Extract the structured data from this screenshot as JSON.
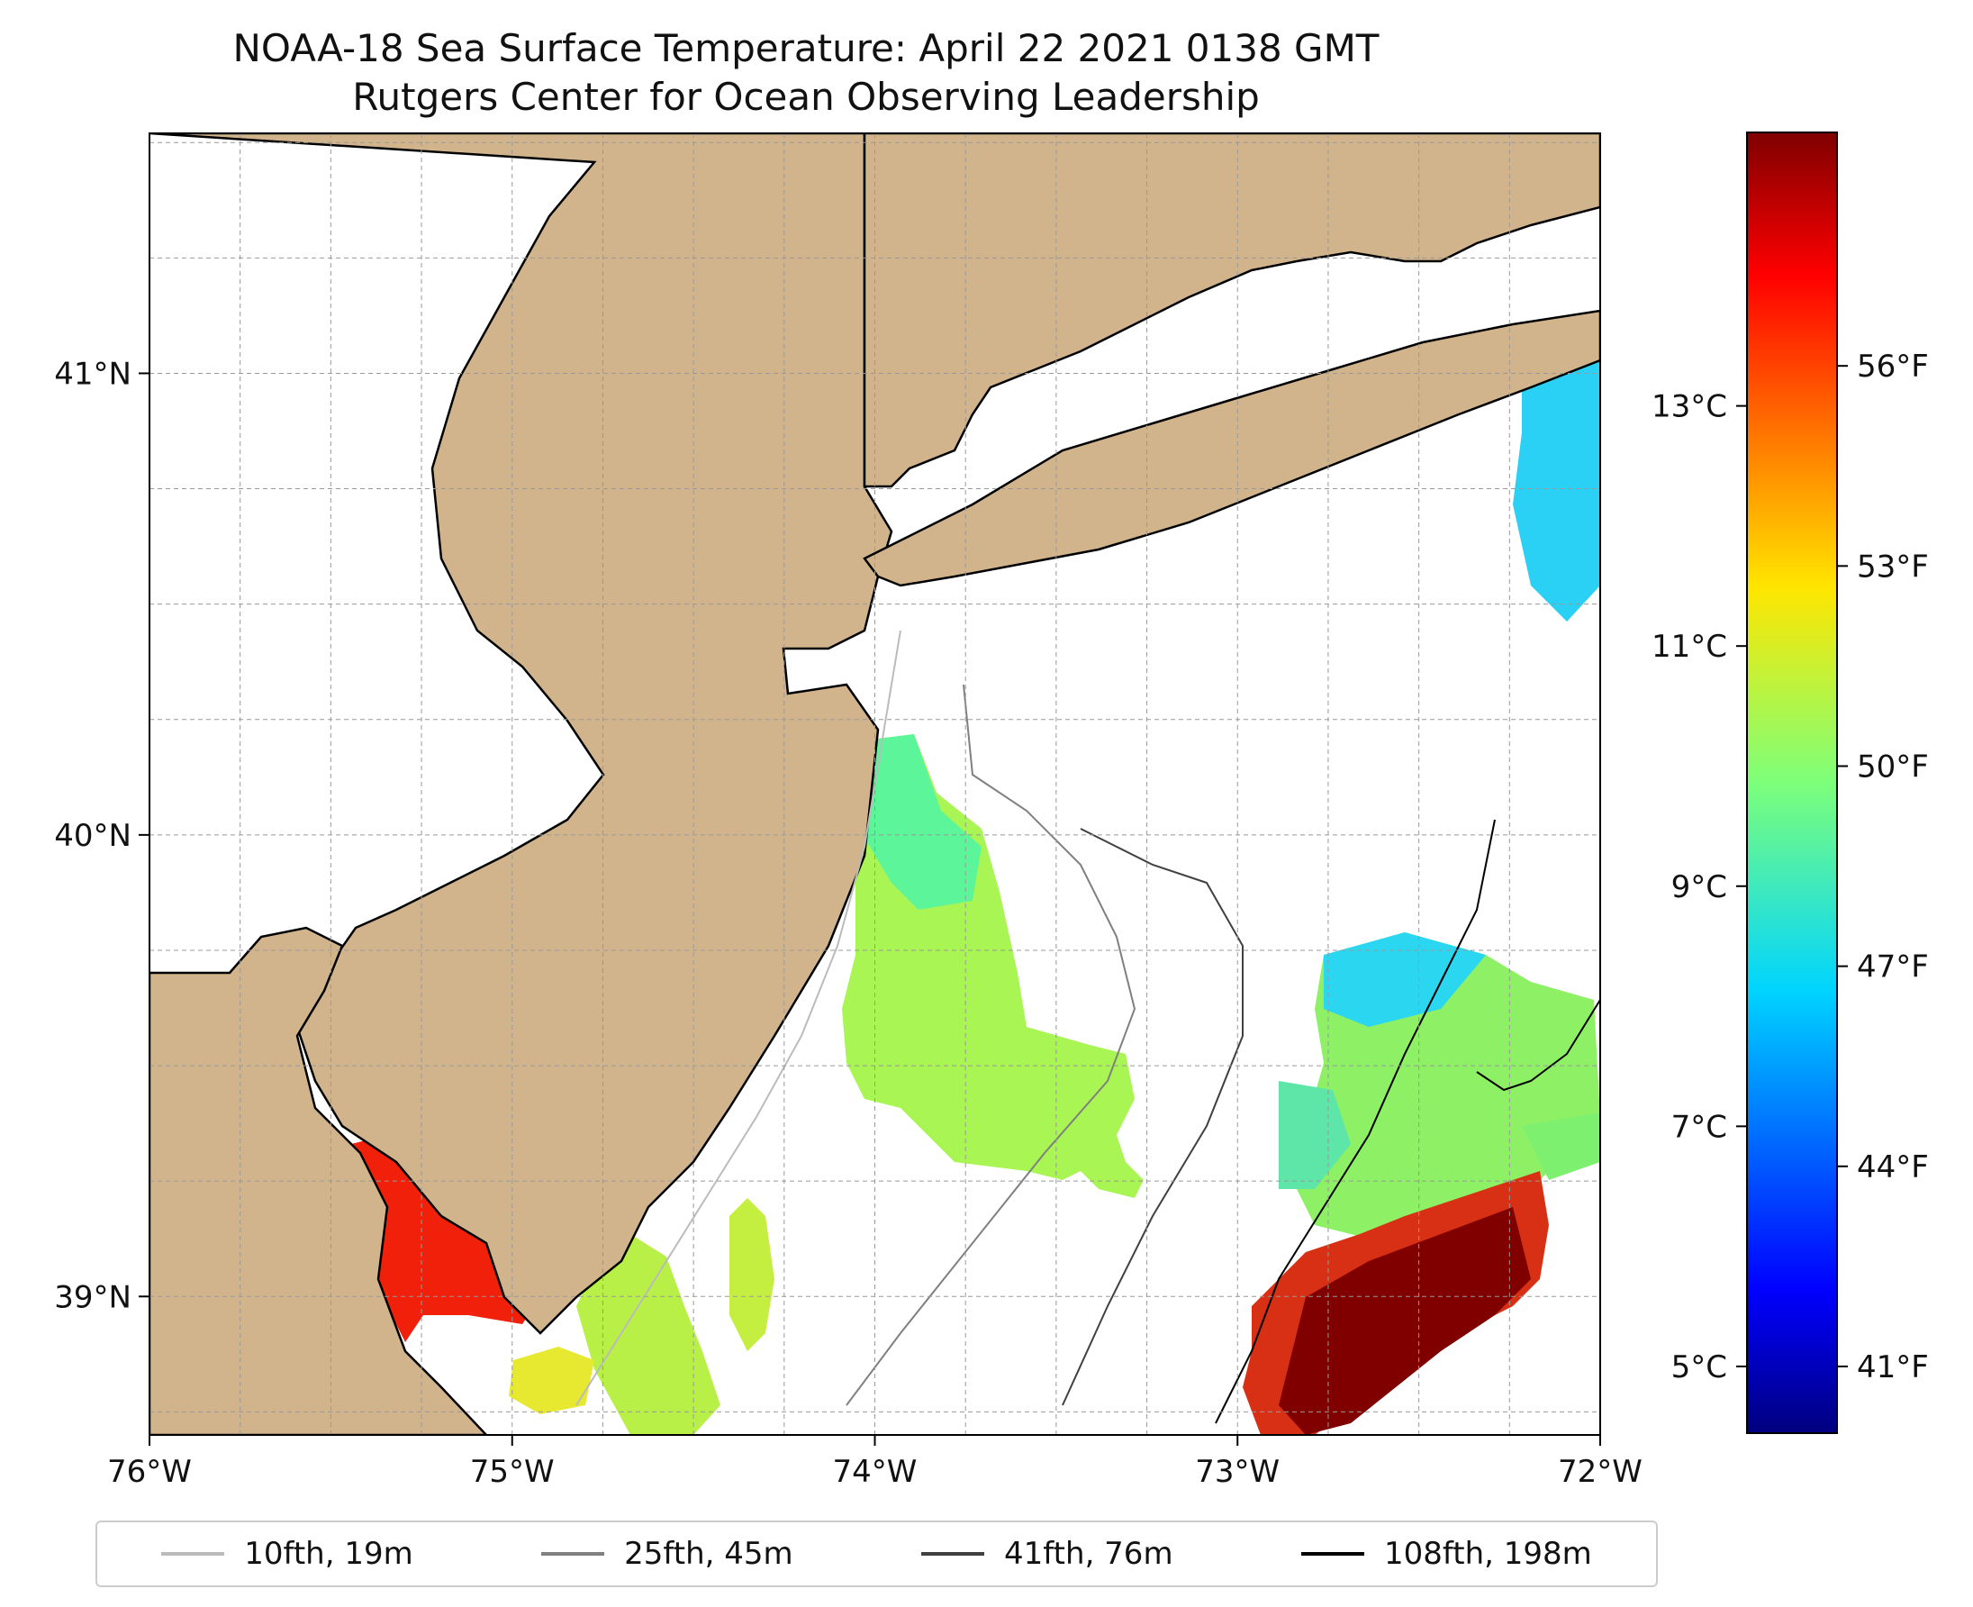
{
  "title": {
    "line1": "NOAA-18 Sea Surface Temperature: April 22 2021 0138 GMT",
    "line2": "Rutgers Center for Ocean Observing Leadership"
  },
  "map": {
    "lon_range": [
      -76,
      -72
    ],
    "lat_range": [
      38.7,
      41.52
    ],
    "lon_ticks": [
      {
        "value": -76,
        "label": "76°W"
      },
      {
        "value": -75,
        "label": "75°W"
      },
      {
        "value": -74,
        "label": "74°W"
      },
      {
        "value": -73,
        "label": "73°W"
      },
      {
        "value": -72,
        "label": "72°W"
      }
    ],
    "lat_ticks": [
      {
        "value": 41,
        "label": "41°N"
      },
      {
        "value": 40,
        "label": "40°N"
      },
      {
        "value": 39,
        "label": "39°N"
      }
    ],
    "land_color": "#d2b48c",
    "gridlines": true
  },
  "colorbar": {
    "colormap": "jet",
    "celsius_ticks": [
      {
        "value": 13,
        "label": "13°C"
      },
      {
        "value": 11,
        "label": "11°C"
      },
      {
        "value": 9,
        "label": "9°C"
      },
      {
        "value": 7,
        "label": "7°C"
      },
      {
        "value": 5,
        "label": "5°C"
      }
    ],
    "fahrenheit_ticks": [
      {
        "value": 56,
        "label": "56°F"
      },
      {
        "value": 53,
        "label": "53°F"
      },
      {
        "value": 50,
        "label": "50°F"
      },
      {
        "value": 47,
        "label": "47°F"
      },
      {
        "value": 44,
        "label": "44°F"
      },
      {
        "value": 41,
        "label": "41°F"
      }
    ]
  },
  "legend": {
    "placement": "bottom",
    "items": [
      {
        "label": "10fth, 19m",
        "color": "#bbbbbb"
      },
      {
        "label": "25fth, 45m",
        "color": "#808080"
      },
      {
        "label": "41fth, 76m",
        "color": "#404040"
      },
      {
        "label": "108fth, 198m",
        "color": "#000000"
      }
    ]
  }
}
